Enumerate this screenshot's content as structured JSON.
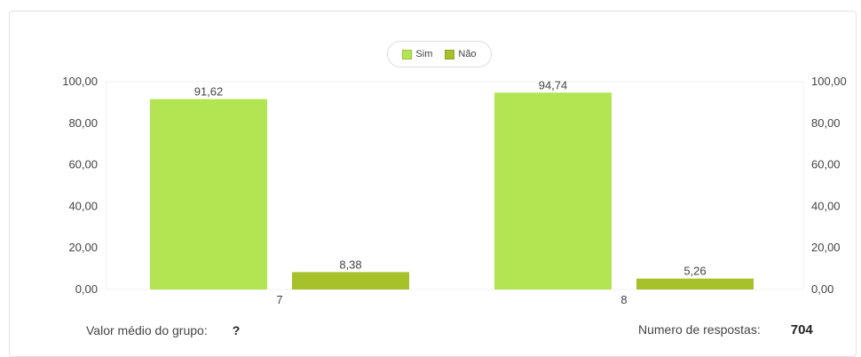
{
  "legend": {
    "items": [
      {
        "label": "Sim",
        "color": "#b2e551"
      },
      {
        "label": "Não",
        "color": "#a7c12a"
      }
    ]
  },
  "chart_data": {
    "type": "bar",
    "categories": [
      "7",
      "8"
    ],
    "series": [
      {
        "name": "Sim",
        "values": [
          91.62,
          94.74
        ],
        "labels": [
          "91,62",
          "94,74"
        ],
        "color": "#b2e551"
      },
      {
        "name": "Não",
        "values": [
          8.38,
          5.26
        ],
        "labels": [
          "8,38",
          "5,26"
        ],
        "color": "#a7c12a"
      }
    ],
    "ylim": [
      0,
      100
    ],
    "yticks": [
      {
        "value": 0,
        "label": "0,00"
      },
      {
        "value": 20,
        "label": "20,00"
      },
      {
        "value": 40,
        "label": "40,00"
      },
      {
        "value": 60,
        "label": "60,00"
      },
      {
        "value": 80,
        "label": "80,00"
      },
      {
        "value": 100,
        "label": "100,00"
      }
    ],
    "secondary_y_axis": true,
    "legend_position": "top-center",
    "grid": false
  },
  "footer": {
    "left_label": "Valor médio do grupo:",
    "left_value": "?",
    "right_label": "Numero de respostas:",
    "right_value": "704"
  }
}
